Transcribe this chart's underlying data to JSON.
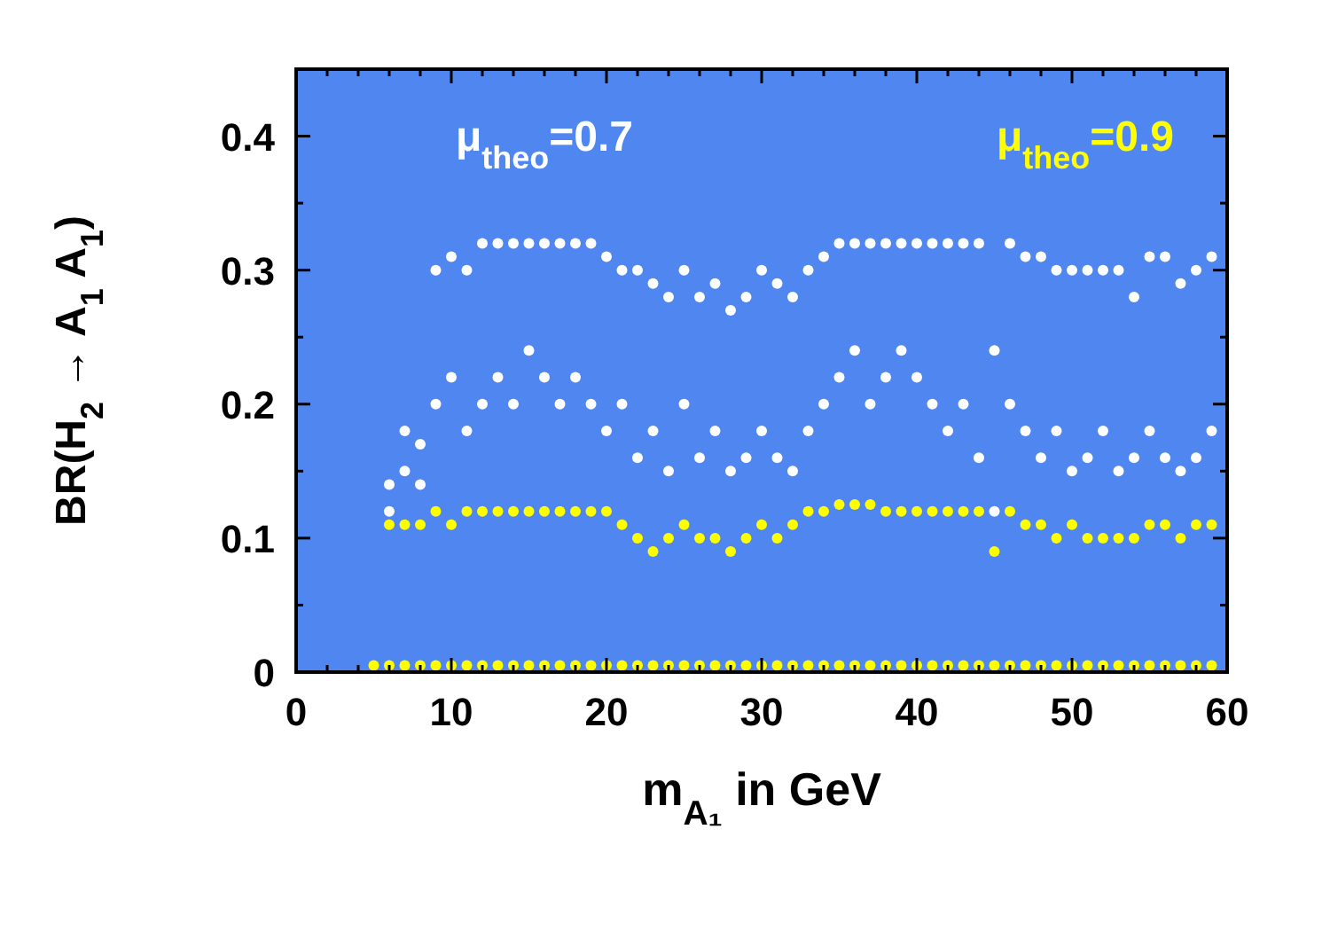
{
  "chart_data": {
    "type": "scatter",
    "xlabel": "m$_{A₁}$ in GeV",
    "ylabel": "BR(H$_{2}$ → A$_{1}$ A$_{1}$)",
    "xlim": [
      0,
      60
    ],
    "ylim": [
      0,
      0.45
    ],
    "xticks": [
      0,
      {
        "value": 2,
        "label": null
      },
      {
        "value": 4,
        "label": null
      },
      {
        "value": 6,
        "label": null
      },
      {
        "value": 8,
        "label": null
      },
      10,
      {
        "value": 12,
        "label": null
      },
      {
        "value": 14,
        "label": null
      },
      {
        "value": 16,
        "label": null
      },
      {
        "value": 18,
        "label": null
      },
      20,
      {
        "value": 22,
        "label": null
      },
      {
        "value": 24,
        "label": null
      },
      {
        "value": 26,
        "label": null
      },
      {
        "value": 28,
        "label": null
      },
      30,
      {
        "value": 32,
        "label": null
      },
      {
        "value": 34,
        "label": null
      },
      {
        "value": 36,
        "label": null
      },
      {
        "value": 38,
        "label": null
      },
      40,
      {
        "value": 42,
        "label": null
      },
      {
        "value": 44,
        "label": null
      },
      {
        "value": 46,
        "label": null
      },
      {
        "value": 48,
        "label": null
      },
      50,
      {
        "value": 52,
        "label": null
      },
      {
        "value": 54,
        "label": null
      },
      {
        "value": 56,
        "label": null
      },
      {
        "value": 58,
        "label": null
      },
      60
    ],
    "yticks": [
      0,
      {
        "value": 0.05,
        "label": null
      },
      0.1,
      {
        "value": 0.15,
        "label": null
      },
      0.2,
      {
        "value": 0.25,
        "label": null
      },
      0.3,
      {
        "value": 0.35,
        "label": null
      },
      0.4
    ],
    "marker": "circle",
    "grid": false,
    "legend": "top",
    "series": [
      {
        "name": "μ$_{theo}$=0.7",
        "color": "#ffffff",
        "x": [
          6,
          7,
          8,
          9,
          10,
          11,
          12,
          13,
          14,
          15,
          16,
          17,
          18,
          19,
          20,
          21,
          22,
          23,
          24,
          25,
          26,
          27,
          28,
          29,
          30,
          31,
          32,
          33,
          34,
          35,
          36,
          37,
          38,
          39,
          40,
          41,
          42,
          43,
          44,
          45,
          46,
          47,
          48,
          49,
          50,
          51,
          52,
          53,
          54,
          55,
          56,
          57,
          58,
          59,
          6,
          7,
          8,
          9,
          10,
          11,
          12,
          13,
          14,
          15,
          16,
          17,
          18,
          19,
          20,
          21,
          22,
          23,
          24,
          25,
          26,
          27,
          28,
          29,
          30,
          31,
          32,
          33,
          34,
          35,
          36,
          37,
          38,
          39,
          40,
          41,
          42,
          43,
          44,
          45,
          46,
          47,
          48,
          49,
          50,
          51,
          52,
          53,
          54,
          55,
          56,
          57,
          58,
          59
        ],
        "values": [
          0.14,
          0.18,
          0.17,
          0.3,
          0.31,
          0.3,
          0.32,
          0.32,
          0.32,
          0.32,
          0.32,
          0.32,
          0.32,
          0.32,
          0.31,
          0.3,
          0.3,
          0.29,
          0.28,
          0.3,
          0.28,
          0.29,
          0.27,
          0.28,
          0.3,
          0.29,
          0.28,
          0.3,
          0.31,
          0.32,
          0.32,
          0.32,
          0.32,
          0.32,
          0.32,
          0.32,
          0.32,
          0.32,
          0.32,
          0.24,
          0.32,
          0.31,
          0.31,
          0.3,
          0.3,
          0.3,
          0.3,
          0.3,
          0.28,
          0.31,
          0.31,
          0.29,
          0.3,
          0.31,
          0.12,
          0.15,
          0.14,
          0.2,
          0.22,
          0.18,
          0.2,
          0.22,
          0.2,
          0.24,
          0.22,
          0.2,
          0.22,
          0.2,
          0.18,
          0.2,
          0.16,
          0.18,
          0.15,
          0.2,
          0.16,
          0.18,
          0.15,
          0.16,
          0.18,
          0.16,
          0.15,
          0.18,
          0.2,
          0.22,
          0.24,
          0.2,
          0.22,
          0.24,
          0.22,
          0.2,
          0.18,
          0.2,
          0.16,
          0.12,
          0.2,
          0.18,
          0.16,
          0.18,
          0.15,
          0.16,
          0.18,
          0.15,
          0.16,
          0.18,
          0.16,
          0.15,
          0.16,
          0.18
        ]
      },
      {
        "name": "μ$_{theo}$=0.9",
        "color": "#ffff00",
        "x": [
          5,
          6,
          7,
          8,
          9,
          10,
          11,
          12,
          13,
          14,
          15,
          16,
          17,
          18,
          19,
          20,
          21,
          22,
          23,
          24,
          25,
          26,
          27,
          28,
          29,
          30,
          31,
          32,
          33,
          34,
          35,
          36,
          37,
          38,
          39,
          40,
          41,
          42,
          43,
          44,
          45,
          46,
          47,
          48,
          49,
          50,
          51,
          52,
          53,
          54,
          55,
          56,
          57,
          58,
          59,
          6,
          7,
          8,
          9,
          10,
          11,
          12,
          13,
          14,
          15,
          16,
          17,
          18,
          19,
          20,
          21,
          22,
          23,
          24,
          25,
          26,
          27,
          28,
          29,
          30,
          31,
          32,
          33,
          34,
          35,
          36,
          37,
          38,
          39,
          40,
          41,
          42,
          43,
          44,
          45,
          46,
          47,
          48,
          49,
          50,
          51,
          52,
          53,
          54,
          55,
          56,
          57,
          58,
          59
        ],
        "values": [
          0.005,
          0.11,
          0.11,
          0.11,
          0.12,
          0.11,
          0.12,
          0.12,
          0.12,
          0.12,
          0.12,
          0.12,
          0.12,
          0.12,
          0.12,
          0.12,
          0.11,
          0.1,
          0.09,
          0.1,
          0.11,
          0.1,
          0.1,
          0.09,
          0.1,
          0.11,
          0.1,
          0.11,
          0.12,
          0.12,
          0.125,
          0.125,
          0.125,
          0.12,
          0.12,
          0.12,
          0.12,
          0.12,
          0.12,
          0.12,
          0.09,
          0.12,
          0.11,
          0.11,
          0.1,
          0.11,
          0.1,
          0.1,
          0.1,
          0.1,
          0.11,
          0.11,
          0.1,
          0.11,
          0.11,
          0.005,
          0.005,
          0.005,
          0.005,
          0.005,
          0.005,
          0.005,
          0.005,
          0.005,
          0.005,
          0.005,
          0.005,
          0.005,
          0.005,
          0.005,
          0.005,
          0.005,
          0.005,
          0.005,
          0.005,
          0.005,
          0.005,
          0.005,
          0.005,
          0.005,
          0.005,
          0.005,
          0.005,
          0.005,
          0.005,
          0.005,
          0.005,
          0.005,
          0.005,
          0.005,
          0.005,
          0.005,
          0.005,
          0.005,
          0.005,
          0.005,
          0.005,
          0.005,
          0.005,
          0.005,
          0.005,
          0.005,
          0.005,
          0.005,
          0.005,
          0.005,
          0.005,
          0.005,
          0.005
        ]
      }
    ]
  }
}
